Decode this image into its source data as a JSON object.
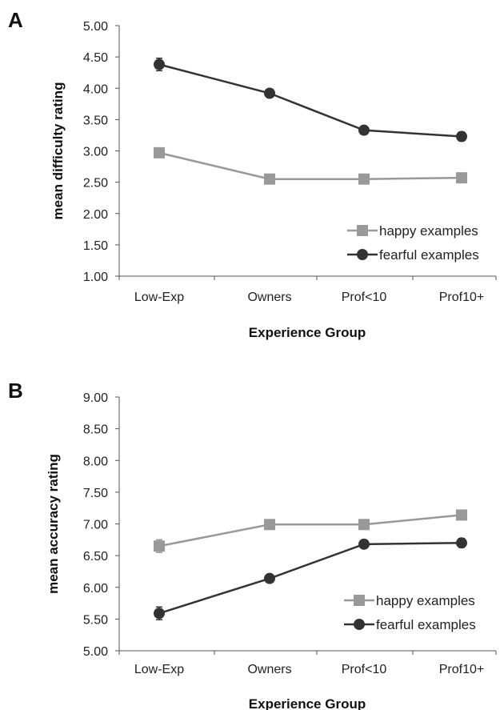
{
  "chart_data": [
    {
      "type": "line",
      "panel_label": "A",
      "categories": [
        "Low-Exp",
        "Owners",
        "Prof<10",
        "Prof10+"
      ],
      "ylabel": "mean difficulty rating",
      "xlabel": "Experience Group",
      "ylim": [
        1.0,
        5.0
      ],
      "yticks": [
        "1.00",
        "1.50",
        "2.00",
        "2.50",
        "3.00",
        "3.50",
        "4.00",
        "4.50",
        "5.00"
      ],
      "legend_position": "bottom-right",
      "series": [
        {
          "name": "happy examples",
          "marker": "square",
          "color": "#999999",
          "values": [
            2.97,
            2.55,
            2.55,
            2.57
          ],
          "errors": [
            0.05,
            0.03,
            0.03,
            0.04
          ]
        },
        {
          "name": "fearful examples",
          "marker": "circle",
          "color": "#333333",
          "values": [
            4.38,
            3.92,
            3.33,
            3.23
          ],
          "errors": [
            0.1,
            0.04,
            0.06,
            0.07
          ]
        }
      ]
    },
    {
      "type": "line",
      "panel_label": "B",
      "categories": [
        "Low-Exp",
        "Owners",
        "Prof<10",
        "Prof10+"
      ],
      "ylabel": "mean accuracy rating",
      "xlabel": "Experience Group",
      "ylim": [
        5.0,
        9.0
      ],
      "yticks": [
        "5.00",
        "5.50",
        "6.00",
        "6.50",
        "7.00",
        "7.50",
        "8.00",
        "8.50",
        "9.00"
      ],
      "legend_position": "bottom-right",
      "series": [
        {
          "name": "happy examples",
          "marker": "square",
          "color": "#999999",
          "values": [
            6.65,
            6.99,
            6.99,
            7.14
          ],
          "errors": [
            0.1,
            0.05,
            0.05,
            0.07
          ]
        },
        {
          "name": "fearful examples",
          "marker": "circle",
          "color": "#333333",
          "values": [
            5.59,
            6.14,
            6.68,
            6.7
          ],
          "errors": [
            0.1,
            0.05,
            0.06,
            0.07
          ]
        }
      ]
    }
  ]
}
